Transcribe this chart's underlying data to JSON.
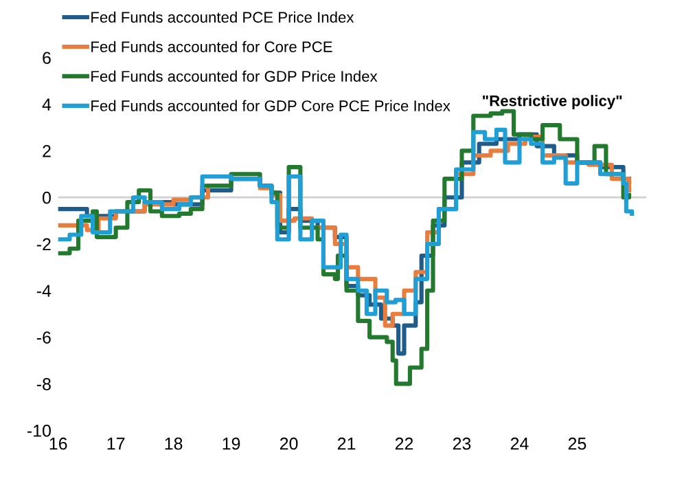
{
  "chart_data": {
    "type": "step",
    "legend": "top left",
    "grid": false,
    "annotations": [
      "\"Restrictive policy\""
    ],
    "xlim": [
      16,
      26.2
    ],
    "xticks": [
      16,
      17,
      18,
      19,
      20,
      21,
      22,
      23,
      24,
      25
    ],
    "ylim": [
      -10,
      6
    ],
    "yticks": [
      -10,
      -8,
      -6,
      -4,
      -2,
      0,
      2,
      4,
      6
    ],
    "ref_lines": [
      {
        "axis": "y",
        "value": 0,
        "color": "#d0d0d0"
      }
    ],
    "series": [
      {
        "name": "Fed Funds accounted PCE Price Index",
        "color": "#1f5c8a",
        "x": [
          16.0,
          16.5,
          17.0,
          17.5,
          18.0,
          18.5,
          19.0,
          19.5,
          19.7,
          19.85,
          20.0,
          20.2,
          20.5,
          20.8,
          21.0,
          21.2,
          21.4,
          21.6,
          21.8,
          21.9,
          22.0,
          22.2,
          22.3,
          22.5,
          22.7,
          23.0,
          23.3,
          23.6,
          24.0,
          24.3,
          24.6,
          25.0,
          25.4,
          25.8,
          25.9
        ],
        "values": [
          -0.5,
          -0.8,
          -0.6,
          -0.2,
          -0.3,
          0.3,
          0.8,
          0.5,
          0.2,
          -1.5,
          -0.5,
          -1.0,
          -1.3,
          -1.7,
          -3.8,
          -4.2,
          -4.6,
          -5.2,
          -5.5,
          -6.7,
          -5.5,
          -4.5,
          -2.5,
          -1.2,
          0,
          1.5,
          2.3,
          2.5,
          2.7,
          2.2,
          1.8,
          1.5,
          1.3,
          0.8,
          0.8
        ]
      },
      {
        "name": "Fed Funds accounted for Core PCE",
        "color": "#e87d3e",
        "x": [
          16.0,
          16.5,
          16.7,
          17.0,
          17.5,
          18.0,
          18.3,
          18.6,
          19.0,
          19.5,
          19.7,
          19.85,
          20.1,
          20.4,
          20.8,
          21.0,
          21.2,
          21.5,
          21.67,
          21.8,
          22.0,
          22.2,
          22.4,
          22.6,
          22.9,
          23.2,
          23.5,
          23.8,
          24.1,
          24.4,
          24.8,
          25.2,
          25.6,
          25.9
        ],
        "values": [
          -1.2,
          -1.4,
          -0.9,
          -0.6,
          -0.3,
          -0.1,
          0,
          0.5,
          0.8,
          0.4,
          0.1,
          -1.0,
          -0.9,
          -1.3,
          -2.0,
          -3.0,
          -3.5,
          -4.3,
          -5.5,
          -5.0,
          -4.0,
          -3.2,
          -1.5,
          -0.5,
          1.0,
          1.8,
          2.0,
          2.3,
          2.6,
          1.8,
          1.5,
          1.4,
          0.8,
          0.3
        ]
      },
      {
        "name": "Fed Funds accounted for GDP Price Index",
        "color": "#237a2f",
        "x": [
          16.0,
          16.2,
          16.35,
          16.6,
          16.67,
          17.0,
          17.2,
          17.4,
          17.6,
          17.8,
          18.1,
          18.3,
          18.5,
          19.0,
          19.5,
          19.7,
          19.8,
          20.0,
          20.2,
          20.5,
          20.6,
          20.8,
          20.85,
          21.0,
          21.2,
          21.4,
          21.7,
          21.8,
          21.86,
          22.1,
          22.3,
          22.4,
          22.5,
          22.7,
          23.0,
          23.2,
          23.5,
          23.7,
          23.9,
          24.2,
          24.4,
          24.7,
          25.0,
          25.3,
          25.5,
          25.8,
          25.9
        ],
        "values": [
          -2.4,
          -2.2,
          -1.0,
          -0.6,
          -1.7,
          -1.3,
          -0.2,
          0.3,
          -0.6,
          -0.8,
          -0.7,
          -0.5,
          0.5,
          1.0,
          0.5,
          0.2,
          -1.3,
          1.3,
          -1.3,
          -1.8,
          -3.3,
          -3.5,
          -2.5,
          -4.0,
          -5.3,
          -6.0,
          -6.2,
          -7.0,
          -8.0,
          -7.3,
          -6.5,
          -4.0,
          -1.0,
          0.8,
          2.0,
          3.5,
          3.6,
          3.7,
          2.7,
          2.5,
          3.1,
          2.5,
          1.5,
          2.2,
          1.0,
          0.0,
          0.1
        ]
      },
      {
        "name": "Fed Funds accounted for GDP Core PCE Price Index",
        "color": "#1f9fd6",
        "x": [
          16.0,
          16.2,
          16.4,
          16.6,
          16.9,
          17.3,
          17.5,
          17.8,
          18.1,
          18.3,
          18.5,
          19.0,
          19.5,
          19.7,
          19.8,
          20.0,
          20.2,
          20.4,
          20.6,
          20.8,
          20.9,
          21.0,
          21.2,
          21.35,
          21.5,
          21.7,
          21.85,
          22.0,
          22.2,
          22.4,
          22.6,
          22.9,
          23.2,
          23.4,
          23.6,
          23.75,
          24.0,
          24.2,
          24.4,
          24.6,
          24.8,
          25.0,
          25.4,
          25.8,
          25.85,
          25.95
        ],
        "values": [
          -1.8,
          -1.6,
          -0.8,
          -1.5,
          -0.6,
          0,
          -0.2,
          -0.5,
          -0.3,
          0.0,
          0.9,
          0.8,
          0.5,
          -0.2,
          -1.8,
          0.9,
          -1.8,
          -1.0,
          -3.0,
          -3.0,
          -1.6,
          -3.5,
          -4.0,
          -5.0,
          -4.0,
          -4.5,
          -4.4,
          -5.0,
          -3.5,
          -2.0,
          -0.5,
          1.2,
          2.8,
          2.5,
          2.9,
          1.5,
          2.5,
          2.3,
          1.5,
          1.7,
          0.6,
          1.5,
          1.0,
          0.6,
          -0.6,
          -0.7
        ]
      }
    ]
  }
}
